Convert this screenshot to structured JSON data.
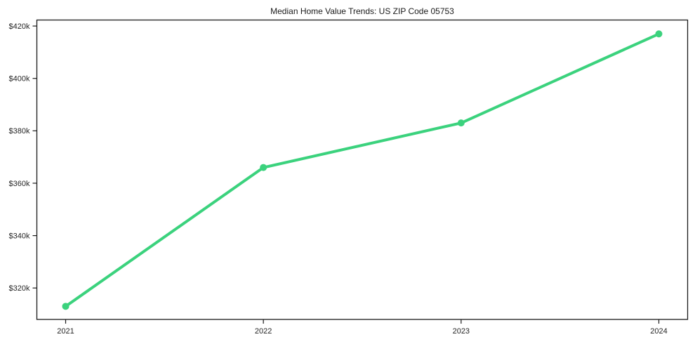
{
  "chart_data": {
    "type": "line",
    "title": "Median Home Value Trends: US ZIP Code 05753",
    "x_categories": [
      "2021",
      "2022",
      "2023",
      "2024"
    ],
    "values_thousands": [
      313,
      366,
      383,
      417
    ],
    "value_unit": "USD thousands (shown as $Xk)",
    "y_ticks": [
      {
        "value": 320,
        "label": "$320k"
      },
      {
        "value": 340,
        "label": "$340k"
      },
      {
        "value": 360,
        "label": "$360k"
      },
      {
        "value": 380,
        "label": "$380k"
      },
      {
        "value": 400,
        "label": "$400k"
      },
      {
        "value": 420,
        "label": "$420k"
      }
    ],
    "ylim_thousands": [
      308,
      422.3
    ],
    "xlabel": "",
    "ylabel": "",
    "grid": false,
    "legend": null,
    "marker": "circle",
    "colors": {
      "line": "#3bd27d",
      "marker": "#3bd27d",
      "axis": "#1a1a1a",
      "tick_text": "#262626",
      "background": "#ffffff"
    }
  }
}
